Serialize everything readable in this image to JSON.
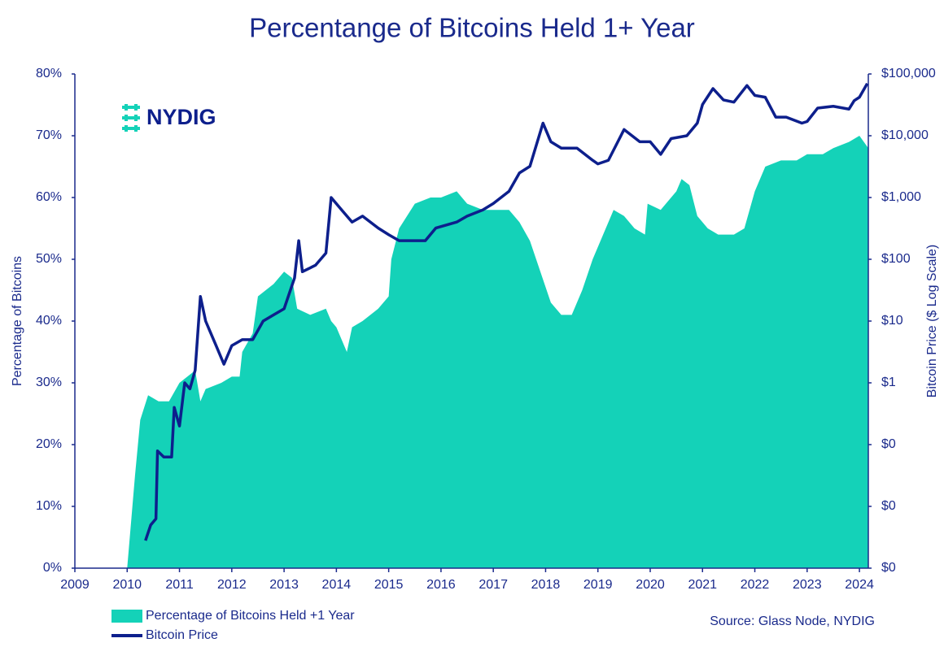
{
  "logo": "NYDIG",
  "chart_data": {
    "type": "line",
    "title": "Percentange of Bitcoins Held 1+ Year",
    "ylabel": "Percentage of Bitcoins",
    "y2label": "Bitcoin Price ($ Log Scale)",
    "source": "Source: Glass Node, NYDIG",
    "xlim": [
      2009,
      2024.17
    ],
    "xticks": [
      2009,
      2010,
      2011,
      2012,
      2013,
      2014,
      2015,
      2016,
      2017,
      2018,
      2019,
      2020,
      2021,
      2022,
      2023,
      2024
    ],
    "ylim": [
      0,
      80
    ],
    "yticks": [
      {
        "value": 0,
        "label": "0%"
      },
      {
        "value": 10,
        "label": "10%"
      },
      {
        "value": 20,
        "label": "20%"
      },
      {
        "value": 30,
        "label": "30%"
      },
      {
        "value": 40,
        "label": "40%"
      },
      {
        "value": 50,
        "label": "50%"
      },
      {
        "value": 60,
        "label": "60%"
      },
      {
        "value": 70,
        "label": "70%"
      },
      {
        "value": 80,
        "label": "80%"
      }
    ],
    "y2lim": [
      0.001,
      100000
    ],
    "y2scale": "log",
    "y2ticks": [
      {
        "value": 0.001,
        "label": "$0"
      },
      {
        "value": 0.01,
        "label": "$0"
      },
      {
        "value": 0.1,
        "label": "$0"
      },
      {
        "value": 1,
        "label": "$1"
      },
      {
        "value": 10,
        "label": "$10"
      },
      {
        "value": 100,
        "label": "$100"
      },
      {
        "value": 1000,
        "label": "$1,000"
      },
      {
        "value": 10000,
        "label": "$10,000"
      },
      {
        "value": 100000,
        "label": "$100,000"
      }
    ],
    "legend": "bottom-left",
    "series": [
      {
        "name": "Percentage of Bitcoins Held +1 Year",
        "type": "area",
        "color": "#14d2b8",
        "x": [
          2010.0,
          2010.05,
          2010.15,
          2010.25,
          2010.4,
          2010.6,
          2010.8,
          2011.0,
          2011.3,
          2011.4,
          2011.5,
          2011.8,
          2012.0,
          2012.15,
          2012.2,
          2012.4,
          2012.5,
          2012.65,
          2012.8,
          2013.0,
          2013.15,
          2013.25,
          2013.5,
          2013.8,
          2013.9,
          2014.0,
          2014.2,
          2014.3,
          2014.5,
          2014.8,
          2015.0,
          2015.05,
          2015.2,
          2015.5,
          2015.8,
          2016.0,
          2016.3,
          2016.5,
          2016.8,
          2017.0,
          2017.3,
          2017.5,
          2017.7,
          2017.9,
          2018.1,
          2018.3,
          2018.5,
          2018.7,
          2018.9,
          2019.1,
          2019.3,
          2019.5,
          2019.7,
          2019.9,
          2019.95,
          2020.2,
          2020.5,
          2020.6,
          2020.75,
          2020.9,
          2021.1,
          2021.3,
          2021.6,
          2021.8,
          2022.0,
          2022.2,
          2022.5,
          2022.8,
          2023.0,
          2023.3,
          2023.5,
          2023.8,
          2024.0,
          2024.17
        ],
        "values": [
          0,
          5,
          15,
          24,
          28,
          27,
          27,
          30,
          32,
          27,
          29,
          30,
          31,
          31,
          35,
          38,
          44,
          45,
          46,
          48,
          47,
          42,
          41,
          42,
          40,
          39,
          35,
          39,
          40,
          42,
          44,
          50,
          55,
          59,
          60,
          60,
          61,
          59,
          58,
          58,
          58,
          56,
          53,
          48,
          43,
          41,
          41,
          45,
          50,
          54,
          58,
          57,
          55,
          54,
          59,
          58,
          61,
          63,
          62,
          57,
          55,
          54,
          54,
          55,
          61,
          65,
          66,
          66,
          67,
          67,
          68,
          69,
          70,
          68
        ]
      },
      {
        "name": "Bitcoin Price",
        "type": "line",
        "axis": "y2",
        "color": "#0d1f8c",
        "x": [
          2010.35,
          2010.45,
          2010.55,
          2010.58,
          2010.7,
          2010.85,
          2010.9,
          2011.0,
          2011.1,
          2011.2,
          2011.3,
          2011.4,
          2011.5,
          2011.7,
          2011.85,
          2012.0,
          2012.2,
          2012.4,
          2012.6,
          2012.8,
          2013.0,
          2013.2,
          2013.28,
          2013.35,
          2013.6,
          2013.8,
          2013.9,
          2014.1,
          2014.3,
          2014.5,
          2014.8,
          2015.0,
          2015.2,
          2015.5,
          2015.7,
          2015.9,
          2016.3,
          2016.5,
          2016.8,
          2017.0,
          2017.3,
          2017.5,
          2017.7,
          2017.95,
          2018.1,
          2018.3,
          2018.6,
          2018.9,
          2019.0,
          2019.2,
          2019.5,
          2019.8,
          2020.0,
          2020.2,
          2020.4,
          2020.7,
          2020.9,
          2021.0,
          2021.2,
          2021.4,
          2021.6,
          2021.85,
          2022.0,
          2022.2,
          2022.4,
          2022.6,
          2022.9,
          2023.0,
          2023.2,
          2023.5,
          2023.8,
          2023.9,
          2024.0,
          2024.15
        ],
        "values": [
          0.0028,
          0.005,
          0.0063,
          0.079,
          0.063,
          0.063,
          0.4,
          0.2,
          1,
          0.8,
          1.6,
          25,
          10,
          4,
          2,
          4,
          5,
          5,
          10,
          12.6,
          15.8,
          50,
          200,
          63,
          80,
          126,
          1000,
          630,
          400,
          500,
          320,
          250,
          200,
          200,
          200,
          320,
          400,
          500,
          630,
          800,
          1260,
          2500,
          3200,
          16000,
          8000,
          6300,
          6300,
          4000,
          3500,
          4000,
          12600,
          8000,
          8000,
          5000,
          9000,
          10000,
          16000,
          32000,
          58000,
          38000,
          35000,
          65000,
          45000,
          42000,
          20000,
          20000,
          16000,
          17000,
          28000,
          30000,
          27000,
          37000,
          42000,
          70000
        ]
      }
    ]
  }
}
